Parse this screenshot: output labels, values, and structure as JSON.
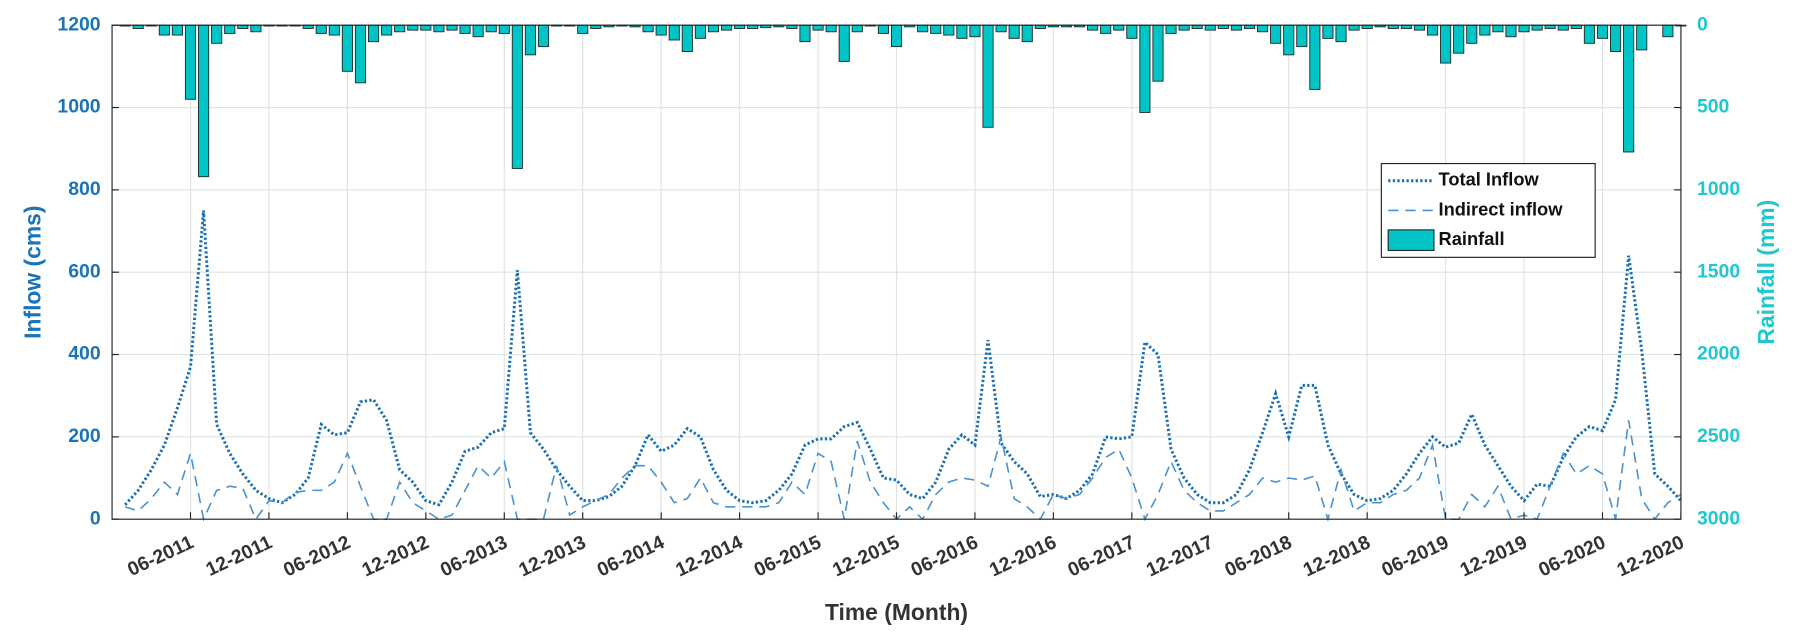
{
  "chart_data": {
    "type": "line",
    "xlabel": "Time (Month)",
    "ylabel": "Inflow (cms)",
    "y2label": "Rainfall (mm)",
    "categories": [
      null,
      null,
      null,
      null,
      null,
      "06-2011",
      null,
      null,
      null,
      null,
      null,
      "12-2011",
      null,
      null,
      null,
      null,
      null,
      "06-2012",
      null,
      null,
      null,
      null,
      null,
      "12-2012",
      null,
      null,
      null,
      null,
      null,
      "06-2013",
      null,
      null,
      null,
      null,
      null,
      "12-2013",
      null,
      null,
      null,
      null,
      null,
      "06-2014",
      null,
      null,
      null,
      null,
      null,
      "12-2014",
      null,
      null,
      null,
      null,
      null,
      "06-2015",
      null,
      null,
      null,
      null,
      null,
      "12-2015",
      null,
      null,
      null,
      null,
      null,
      "06-2016",
      null,
      null,
      null,
      null,
      null,
      "12-2016",
      null,
      null,
      null,
      null,
      null,
      "06-2017",
      null,
      null,
      null,
      null,
      null,
      "12-2017",
      null,
      null,
      null,
      null,
      null,
      "06-2018",
      null,
      null,
      null,
      null,
      null,
      "12-2018",
      null,
      null,
      null,
      null,
      null,
      "06-2019",
      null,
      null,
      null,
      null,
      null,
      "12-2019",
      null,
      null,
      null,
      null,
      null,
      "06-2020",
      null,
      null,
      null,
      null,
      null,
      "12-2020"
    ],
    "ylim": [
      0,
      1200
    ],
    "yticks": [
      0,
      200,
      400,
      600,
      800,
      1000,
      1200
    ],
    "y2lim": [
      0,
      3000
    ],
    "y2ticks": [
      0,
      500,
      1000,
      1500,
      2000,
      2500,
      3000
    ],
    "y2_reversed": true,
    "grid": true,
    "legend": "right",
    "series": [
      {
        "name": "Total Inflow",
        "type": "line",
        "style": "dotted",
        "color": "#1a6fae",
        "values": [
          35,
          70,
          120,
          180,
          270,
          370,
          750,
          230,
          160,
          110,
          70,
          50,
          40,
          60,
          100,
          230,
          205,
          210,
          285,
          290,
          240,
          120,
          90,
          45,
          35,
          90,
          165,
          175,
          210,
          220,
          605,
          210,
          170,
          120,
          80,
          45,
          45,
          55,
          80,
          130,
          205,
          165,
          180,
          220,
          200,
          120,
          70,
          45,
          40,
          45,
          70,
          110,
          180,
          195,
          195,
          225,
          235,
          170,
          100,
          95,
          60,
          50,
          90,
          170,
          205,
          180,
          435,
          185,
          140,
          110,
          55,
          60,
          50,
          70,
          110,
          200,
          195,
          200,
          430,
          400,
          170,
          100,
          60,
          40,
          40,
          60,
          120,
          210,
          305,
          200,
          325,
          325,
          180,
          110,
          60,
          45,
          50,
          70,
          110,
          160,
          200,
          175,
          185,
          255,
          180,
          130,
          80,
          45,
          85,
          80,
          150,
          200,
          225,
          215,
          290,
          640,
          410,
          110,
          80,
          45
        ]
      },
      {
        "name": "Indirect inflow",
        "type": "line",
        "style": "dashed",
        "color": "#4a93cc",
        "values": [
          30,
          20,
          50,
          90,
          60,
          160,
          0,
          70,
          80,
          75,
          0,
          45,
          40,
          65,
          70,
          70,
          90,
          160,
          80,
          0,
          0,
          90,
          40,
          20,
          0,
          10,
          70,
          130,
          100,
          140,
          0,
          0,
          0,
          130,
          10,
          30,
          45,
          60,
          100,
          130,
          130,
          90,
          40,
          50,
          100,
          40,
          30,
          30,
          30,
          30,
          40,
          90,
          60,
          160,
          140,
          0,
          190,
          90,
          40,
          0,
          30,
          0,
          60,
          90,
          100,
          95,
          80,
          200,
          50,
          30,
          0,
          60,
          50,
          60,
          100,
          150,
          170,
          100,
          0,
          60,
          140,
          70,
          40,
          20,
          20,
          40,
          60,
          100,
          90,
          100,
          95,
          105,
          0,
          120,
          20,
          40,
          40,
          60,
          70,
          100,
          180,
          0,
          0,
          60,
          30,
          80,
          0,
          10,
          0,
          80,
          160,
          110,
          130,
          110,
          0,
          240,
          50,
          0,
          40,
          60
        ]
      },
      {
        "name": "Rainfall",
        "type": "bar",
        "axis": "y2",
        "color": "#00c4c6",
        "values": [
          5,
          20,
          5,
          60,
          60,
          450,
          920,
          110,
          50,
          20,
          40,
          5,
          5,
          5,
          20,
          50,
          60,
          280,
          350,
          100,
          60,
          40,
          30,
          30,
          40,
          30,
          50,
          70,
          40,
          50,
          870,
          180,
          130,
          5,
          5,
          50,
          20,
          10,
          5,
          10,
          40,
          60,
          90,
          160,
          80,
          40,
          30,
          20,
          20,
          15,
          10,
          20,
          100,
          30,
          40,
          220,
          40,
          5,
          50,
          130,
          10,
          40,
          50,
          60,
          80,
          70,
          620,
          40,
          80,
          100,
          20,
          10,
          10,
          10,
          30,
          50,
          30,
          80,
          530,
          340,
          50,
          30,
          20,
          30,
          20,
          30,
          20,
          40,
          110,
          180,
          130,
          390,
          80,
          100,
          30,
          20,
          10,
          20,
          20,
          30,
          60,
          230,
          170,
          110,
          60,
          40,
          70,
          40,
          30,
          20,
          30,
          20,
          110,
          80,
          160,
          770,
          150,
          0,
          70,
          5
        ]
      }
    ]
  }
}
